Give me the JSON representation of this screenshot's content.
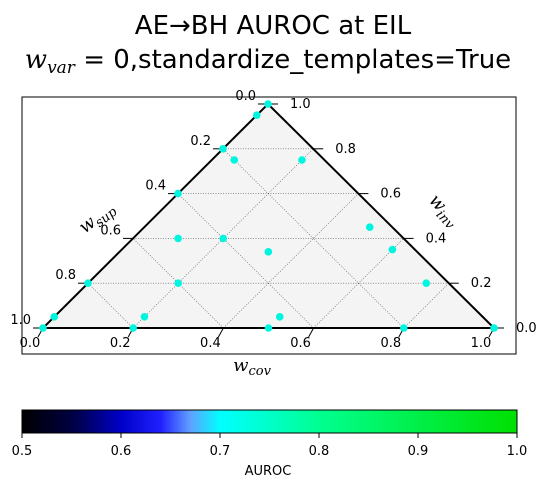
{
  "chart_data": {
    "type": "scatter",
    "projection": "ternary",
    "title_line1": "AE→BH AUROC at EIL",
    "title_line2_math": "w",
    "title_line2_sub": "var",
    "title_line2_rest": " = 0,standardize_templates=True",
    "axes": {
      "bottom": {
        "label_base": "w",
        "label_sub": "cov",
        "ticks": [
          "0.0",
          "0.2",
          "0.4",
          "0.6",
          "0.8",
          "1.0"
        ]
      },
      "left": {
        "label_base": "w",
        "label_sub": "sup",
        "ticks": [
          "0.0",
          "0.2",
          "0.4",
          "0.6",
          "0.8",
          "1.0"
        ]
      },
      "right": {
        "label_base": "w",
        "label_sub": "inv",
        "ticks": [
          "0.0",
          "0.2",
          "0.4",
          "0.6",
          "0.8",
          "1.0"
        ]
      }
    },
    "grid": true,
    "colorbar": {
      "label": "AUROC",
      "range": [
        0.5,
        1.0
      ],
      "ticks": [
        "0.5",
        "0.6",
        "0.7",
        "0.8",
        "0.9",
        "1.0"
      ],
      "colormap": "gnuplot2-like",
      "stops": [
        {
          "v": 0.5,
          "color": "#000000"
        },
        {
          "v": 0.55,
          "color": "#000040"
        },
        {
          "v": 0.6,
          "color": "#0000c8"
        },
        {
          "v": 0.64,
          "color": "#2020ff"
        },
        {
          "v": 0.67,
          "color": "#60a0ff"
        },
        {
          "v": 0.7,
          "color": "#00ffff"
        },
        {
          "v": 0.8,
          "color": "#00ff90"
        },
        {
          "v": 1.0,
          "color": "#00e000"
        }
      ]
    },
    "point_color": "#00f5e0",
    "points": [
      {
        "cov": 0.0,
        "sup": 0.0,
        "inv": 1.0,
        "auroc": 0.71
      },
      {
        "cov": 0.0,
        "sup": 0.05,
        "inv": 0.95,
        "auroc": 0.71
      },
      {
        "cov": 0.0,
        "sup": 0.2,
        "inv": 0.8,
        "auroc": 0.71
      },
      {
        "cov": 0.0,
        "sup": 0.4,
        "inv": 0.6,
        "auroc": 0.71
      },
      {
        "cov": 0.0,
        "sup": 0.8,
        "inv": 0.2,
        "auroc": 0.71
      },
      {
        "cov": 0.0,
        "sup": 0.95,
        "inv": 0.05,
        "auroc": 0.71
      },
      {
        "cov": 0.0,
        "sup": 1.0,
        "inv": 0.0,
        "auroc": 0.71
      },
      {
        "cov": 0.2,
        "sup": 0.8,
        "inv": 0.0,
        "auroc": 0.71
      },
      {
        "cov": 0.5,
        "sup": 0.5,
        "inv": 0.0,
        "auroc": 0.72
      },
      {
        "cov": 0.8,
        "sup": 0.2,
        "inv": 0.0,
        "auroc": 0.71
      },
      {
        "cov": 1.0,
        "sup": 0.0,
        "inv": 0.0,
        "auroc": 0.72
      },
      {
        "cov": 0.2,
        "sup": 0.75,
        "inv": 0.05,
        "auroc": 0.71
      },
      {
        "cov": 0.5,
        "sup": 0.45,
        "inv": 0.05,
        "auroc": 0.72
      },
      {
        "cov": 0.2,
        "sup": 0.6,
        "inv": 0.2,
        "auroc": 0.71
      },
      {
        "cov": 0.75,
        "sup": 0.05,
        "inv": 0.2,
        "auroc": 0.71
      },
      {
        "cov": 0.05,
        "sup": 0.2,
        "inv": 0.75,
        "auroc": 0.71
      },
      {
        "cov": 0.2,
        "sup": 0.05,
        "inv": 0.75,
        "auroc": 0.71
      },
      {
        "cov": 0.5,
        "sup": 0.05,
        "inv": 0.45,
        "auroc": 0.71
      },
      {
        "cov": 0.33,
        "sup": 0.33,
        "inv": 0.34,
        "auroc": 0.71
      },
      {
        "cov": 0.2,
        "sup": 0.4,
        "inv": 0.4,
        "auroc": 0.71
      },
      {
        "cov": 0.6,
        "sup": 0.05,
        "inv": 0.35,
        "auroc": 0.71
      },
      {
        "cov": 0.1,
        "sup": 0.5,
        "inv": 0.4,
        "auroc": 0.71
      }
    ]
  }
}
